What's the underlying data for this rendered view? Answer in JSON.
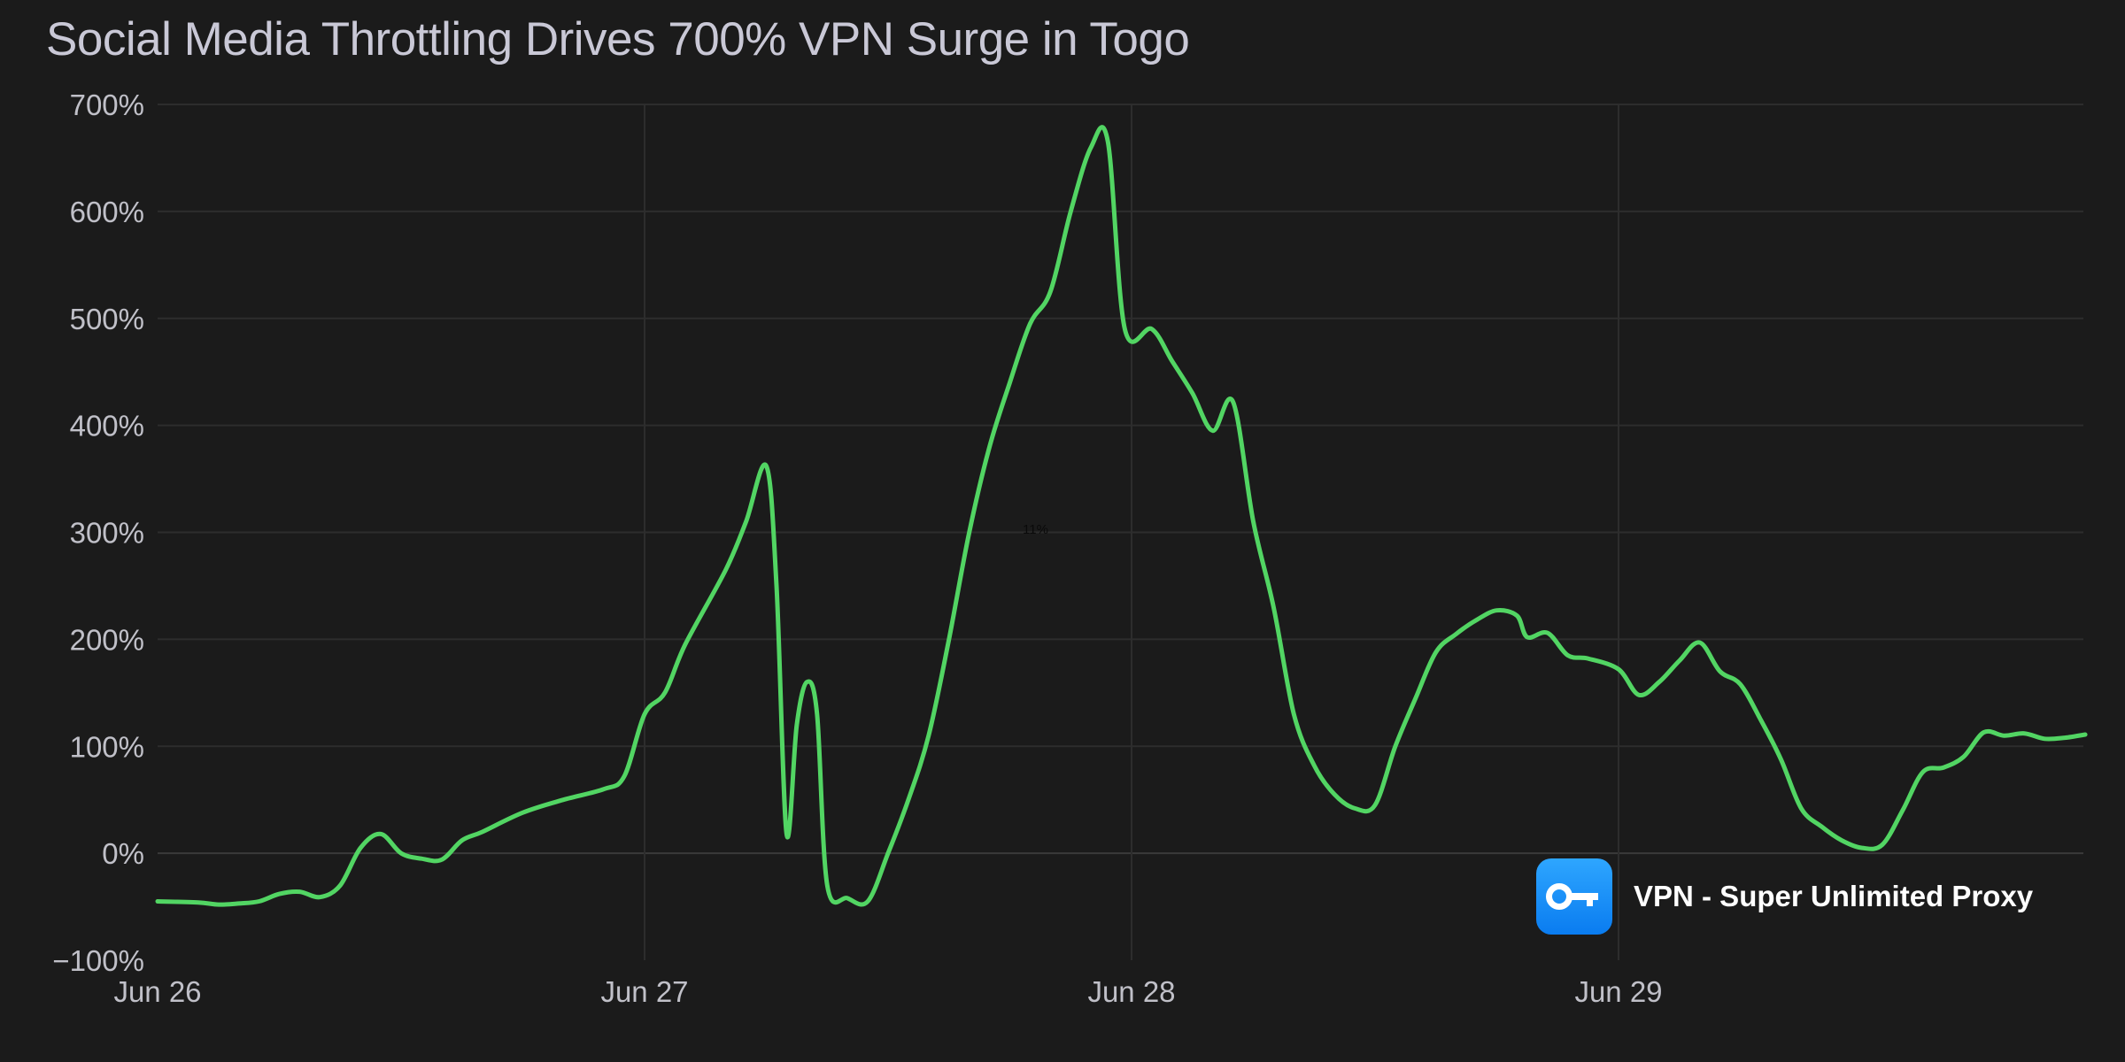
{
  "chart_data": {
    "type": "line",
    "title": "Social Media Throttling Drives 700% VPN Surge in Togo",
    "xlabel": "",
    "ylabel": "",
    "x_unit": "days",
    "xlim": [
      "2024-06-26T00:00",
      "2024-06-29T23:00"
    ],
    "ylim": [
      -100,
      700
    ],
    "y_ticks": [
      -100,
      0,
      100,
      200,
      300,
      400,
      500,
      600,
      700
    ],
    "y_tick_labels": [
      "−100%",
      "0%",
      "100%",
      "200%",
      "300%",
      "400%",
      "500%",
      "600%",
      "700%"
    ],
    "x_ticks": [
      "2024-06-26T00:00",
      "2024-06-27T00:00",
      "2024-06-28T00:00",
      "2024-06-29T00:00"
    ],
    "x_tick_labels": [
      "Jun 26",
      "Jun 27",
      "Jun 28",
      "Jun 29"
    ],
    "grid": true,
    "line_color": "#52d563",
    "annotation": "11%",
    "series": [
      {
        "values": [
          [
            "2024-06-26T00:00",
            -45
          ],
          [
            "2024-06-26T02:00",
            -46
          ],
          [
            "2024-06-26T03:00",
            -48
          ],
          [
            "2024-06-26T04:00",
            -47
          ],
          [
            "2024-06-26T05:00",
            -45
          ],
          [
            "2024-06-26T06:00",
            -38
          ],
          [
            "2024-06-26T07:00",
            -36
          ],
          [
            "2024-06-26T08:00",
            -41
          ],
          [
            "2024-06-26T09:00",
            -30
          ],
          [
            "2024-06-26T10:00",
            5
          ],
          [
            "2024-06-26T11:00",
            18
          ],
          [
            "2024-06-26T12:00",
            0
          ],
          [
            "2024-06-26T13:00",
            -5
          ],
          [
            "2024-06-26T14:00",
            -6
          ],
          [
            "2024-06-26T15:00",
            12
          ],
          [
            "2024-06-26T16:00",
            20
          ],
          [
            "2024-06-26T18:00",
            38
          ],
          [
            "2024-06-26T20:00",
            50
          ],
          [
            "2024-06-26T22:00",
            60
          ],
          [
            "2024-06-26T23:00",
            72
          ],
          [
            "2024-06-27T00:00",
            130
          ],
          [
            "2024-06-27T01:00",
            150
          ],
          [
            "2024-06-27T02:00",
            195
          ],
          [
            "2024-06-27T04:00",
            265
          ],
          [
            "2024-06-27T05:00",
            310
          ],
          [
            "2024-06-27T06:00",
            362
          ],
          [
            "2024-06-27T06:30",
            250
          ],
          [
            "2024-06-27T07:00",
            18
          ],
          [
            "2024-06-27T07:30",
            120
          ],
          [
            "2024-06-27T08:00",
            160
          ],
          [
            "2024-06-27T08:30",
            130
          ],
          [
            "2024-06-27T09:00",
            -30
          ],
          [
            "2024-06-27T10:00",
            -42
          ],
          [
            "2024-06-27T11:00",
            -45
          ],
          [
            "2024-06-27T12:00",
            0
          ],
          [
            "2024-06-27T13:00",
            50
          ],
          [
            "2024-06-27T14:00",
            110
          ],
          [
            "2024-06-27T15:00",
            200
          ],
          [
            "2024-06-27T16:00",
            300
          ],
          [
            "2024-06-27T17:00",
            380
          ],
          [
            "2024-06-27T18:00",
            440
          ],
          [
            "2024-06-27T19:00",
            495
          ],
          [
            "2024-06-27T20:00",
            525
          ],
          [
            "2024-06-27T21:00",
            600
          ],
          [
            "2024-06-27T22:00",
            660
          ],
          [
            "2024-06-27T22:50",
            665
          ],
          [
            "2024-06-27T23:40",
            490
          ],
          [
            "2024-06-28T01:00",
            490
          ],
          [
            "2024-06-28T02:00",
            460
          ],
          [
            "2024-06-28T03:00",
            430
          ],
          [
            "2024-06-28T04:00",
            395
          ],
          [
            "2024-06-28T05:00",
            422
          ],
          [
            "2024-06-28T06:00",
            310
          ],
          [
            "2024-06-28T07:00",
            230
          ],
          [
            "2024-06-28T08:00",
            130
          ],
          [
            "2024-06-28T09:00",
            82
          ],
          [
            "2024-06-28T10:00",
            55
          ],
          [
            "2024-06-28T11:00",
            42
          ],
          [
            "2024-06-28T12:00",
            45
          ],
          [
            "2024-06-28T13:00",
            100
          ],
          [
            "2024-06-28T14:00",
            145
          ],
          [
            "2024-06-28T15:00",
            188
          ],
          [
            "2024-06-28T16:00",
            205
          ],
          [
            "2024-06-28T17:00",
            218
          ],
          [
            "2024-06-28T18:00",
            227
          ],
          [
            "2024-06-28T19:00",
            222
          ],
          [
            "2024-06-28T19:30",
            202
          ],
          [
            "2024-06-28T20:30",
            206
          ],
          [
            "2024-06-28T21:30",
            185
          ],
          [
            "2024-06-28T22:30",
            182
          ],
          [
            "2024-06-29T00:00",
            172
          ],
          [
            "2024-06-29T01:00",
            148
          ],
          [
            "2024-06-29T02:00",
            160
          ],
          [
            "2024-06-29T03:00",
            180
          ],
          [
            "2024-06-29T04:00",
            197
          ],
          [
            "2024-06-29T05:00",
            170
          ],
          [
            "2024-06-29T06:00",
            158
          ],
          [
            "2024-06-29T07:00",
            125
          ],
          [
            "2024-06-29T08:00",
            88
          ],
          [
            "2024-06-29T09:00",
            42
          ],
          [
            "2024-06-29T10:00",
            25
          ],
          [
            "2024-06-29T11:00",
            12
          ],
          [
            "2024-06-29T12:00",
            5
          ],
          [
            "2024-06-29T13:00",
            8
          ],
          [
            "2024-06-29T14:00",
            40
          ],
          [
            "2024-06-29T15:00",
            76
          ],
          [
            "2024-06-29T16:00",
            80
          ],
          [
            "2024-06-29T17:00",
            90
          ],
          [
            "2024-06-29T18:00",
            113
          ],
          [
            "2024-06-29T19:00",
            110
          ],
          [
            "2024-06-29T20:00",
            112
          ],
          [
            "2024-06-29T21:00",
            107
          ],
          [
            "2024-06-29T22:00",
            108
          ],
          [
            "2024-06-29T23:00",
            111
          ]
        ]
      }
    ]
  },
  "app_badge": {
    "name": "VPN - Super Unlimited Proxy",
    "icon": "key-icon"
  }
}
